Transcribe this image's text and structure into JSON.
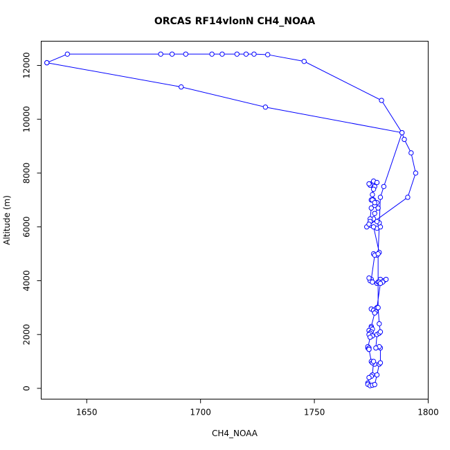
{
  "chart_data": {
    "type": "line",
    "title": "ORCAS RF14vlonN CH4_NOAA",
    "xlabel": "CH4_NOAA",
    "ylabel": "Altitude (m)",
    "xlim": [
      1630,
      1800
    ],
    "ylim": [
      -400,
      12900
    ],
    "x_ticks": [
      1650,
      1700,
      1750,
      1800
    ],
    "y_ticks": [
      0,
      2000,
      4000,
      6000,
      8000,
      10000,
      12000
    ],
    "series_color": "#0000ff",
    "grid": false,
    "legend": "none",
    "series": [
      {
        "x": [
          1632.5,
          1691.5,
          1728.5,
          1788.5,
          1789.5,
          1792.5,
          1794.5,
          1791,
          1773,
          1777.5,
          1779,
          1778.5,
          1777.5,
          1776,
          1776.5,
          1778,
          1775,
          1776,
          1777.5,
          1776.5,
          1775,
          1776,
          1775.5,
          1776.5,
          1774.5,
          1774,
          1776,
          1777.5,
          1776,
          1775.5,
          1775.5,
          1776.5,
          1775,
          1774.5,
          1774.5,
          1774,
          1776,
          1778.5,
          1777.5,
          1776,
          1776.5,
          1775,
          1774.5,
          1774,
          1775.5,
          1777.5,
          1778,
          1779,
          1778.5,
          1780.5,
          1781.5,
          1780,
          1779,
          1777.5,
          1777,
          1776,
          1775,
          1776,
          1777,
          1776.5,
          1775,
          1775,
          1775.5,
          1774,
          1775,
          1774.5,
          1774,
          1775.5,
          1774.5,
          1773.5,
          1774,
          1773.5,
          1774,
          1774,
          1775,
          1775.5,
          1776.5,
          1775.5,
          1776,
          1775.5,
          1775,
          1774,
          1773.5,
          1773.5,
          1774.5,
          1775.5,
          1776.5,
          1777.5,
          1778.5,
          1779,
          1779,
          1778.5,
          1777,
          1777.5,
          1778.5,
          1779,
          1778.5,
          1778,
          1778,
          1779,
          1780.5,
          1788.5,
          1779.5,
          1745.5,
          1729.5,
          1723.5,
          1720,
          1716,
          1709.5,
          1705,
          1693.5,
          1687.5,
          1682.5,
          1641.5,
          1632.5
        ],
        "y": [
          12100,
          11200,
          10450,
          9500,
          9250,
          8750,
          8000,
          7100,
          6000,
          5950,
          6000,
          6150,
          6200,
          6300,
          6500,
          6700,
          7000,
          7000,
          6900,
          6800,
          7600,
          7600,
          7550,
          7500,
          7550,
          7600,
          7700,
          7650,
          7400,
          7200,
          7000,
          6900,
          6700,
          6300,
          6200,
          6100,
          6000,
          5050,
          4950,
          5000,
          4950,
          4050,
          4000,
          4100,
          3950,
          3900,
          3950,
          4050,
          3950,
          4000,
          4050,
          3950,
          3900,
          3000,
          2950,
          2900,
          2950,
          2900,
          2850,
          2800,
          2300,
          2250,
          2200,
          2150,
          2100,
          2050,
          2000,
          1950,
          1900,
          1500,
          1450,
          1550,
          1500,
          1450,
          1000,
          950,
          900,
          950,
          1000,
          500,
          450,
          400,
          200,
          150,
          100,
          120,
          140,
          500,
          900,
          950,
          1500,
          1550,
          1500,
          2000,
          2050,
          2100,
          2400,
          3000,
          5000,
          7100,
          7500,
          9500,
          10700,
          12150,
          12400,
          12420,
          12420,
          12420,
          12420,
          12420,
          12420,
          12420,
          12420,
          12420,
          12100
        ]
      }
    ]
  }
}
